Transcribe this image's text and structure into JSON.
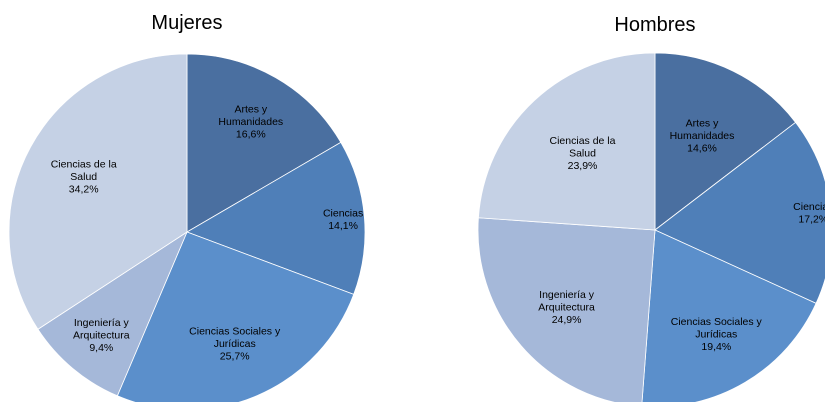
{
  "chart_data": [
    {
      "type": "pie",
      "title": "Mujeres",
      "slices": [
        {
          "label": [
            "Artes y",
            "Humanidades"
          ],
          "value_label": "16,6%",
          "value": 16.6,
          "color": "#4A6FA0"
        },
        {
          "label": [
            "Ciencias"
          ],
          "value_label": "14,1%",
          "value": 14.1,
          "color": "#4F7FB8"
        },
        {
          "label": [
            "Ciencias Sociales y",
            "Jurídicas"
          ],
          "value_label": "25,7%",
          "value": 25.7,
          "color": "#5B8FCB"
        },
        {
          "label": [
            "Ingeniería y",
            "Arquitectura"
          ],
          "value_label": "9,4%",
          "value": 9.4,
          "color": "#A5B8D9"
        },
        {
          "label": [
            "Ciencias de la",
            "Salud"
          ],
          "value_label": "34,2%",
          "value": 34.2,
          "color": "#C5D1E5"
        }
      ]
    },
    {
      "type": "pie",
      "title": "Hombres",
      "slices": [
        {
          "label": [
            "Artes y",
            "Humanidades"
          ],
          "value_label": "14,6%",
          "value": 14.6,
          "color": "#4A6FA0"
        },
        {
          "label": [
            "Ciencias"
          ],
          "value_label": "17,2%",
          "value": 17.2,
          "color": "#4F7FB8"
        },
        {
          "label": [
            "Ciencias Sociales y",
            "Jurídicas"
          ],
          "value_label": "19,4%",
          "value": 19.4,
          "color": "#5B8FCB"
        },
        {
          "label": [
            "Ingeniería y",
            "Arquitectura"
          ],
          "value_label": "24,9%",
          "value": 24.9,
          "color": "#A5B8D9"
        },
        {
          "label": [
            "Ciencias de la",
            "Salud"
          ],
          "value_label": "23,9%",
          "value": 23.9,
          "color": "#C5D1E5"
        }
      ]
    }
  ]
}
